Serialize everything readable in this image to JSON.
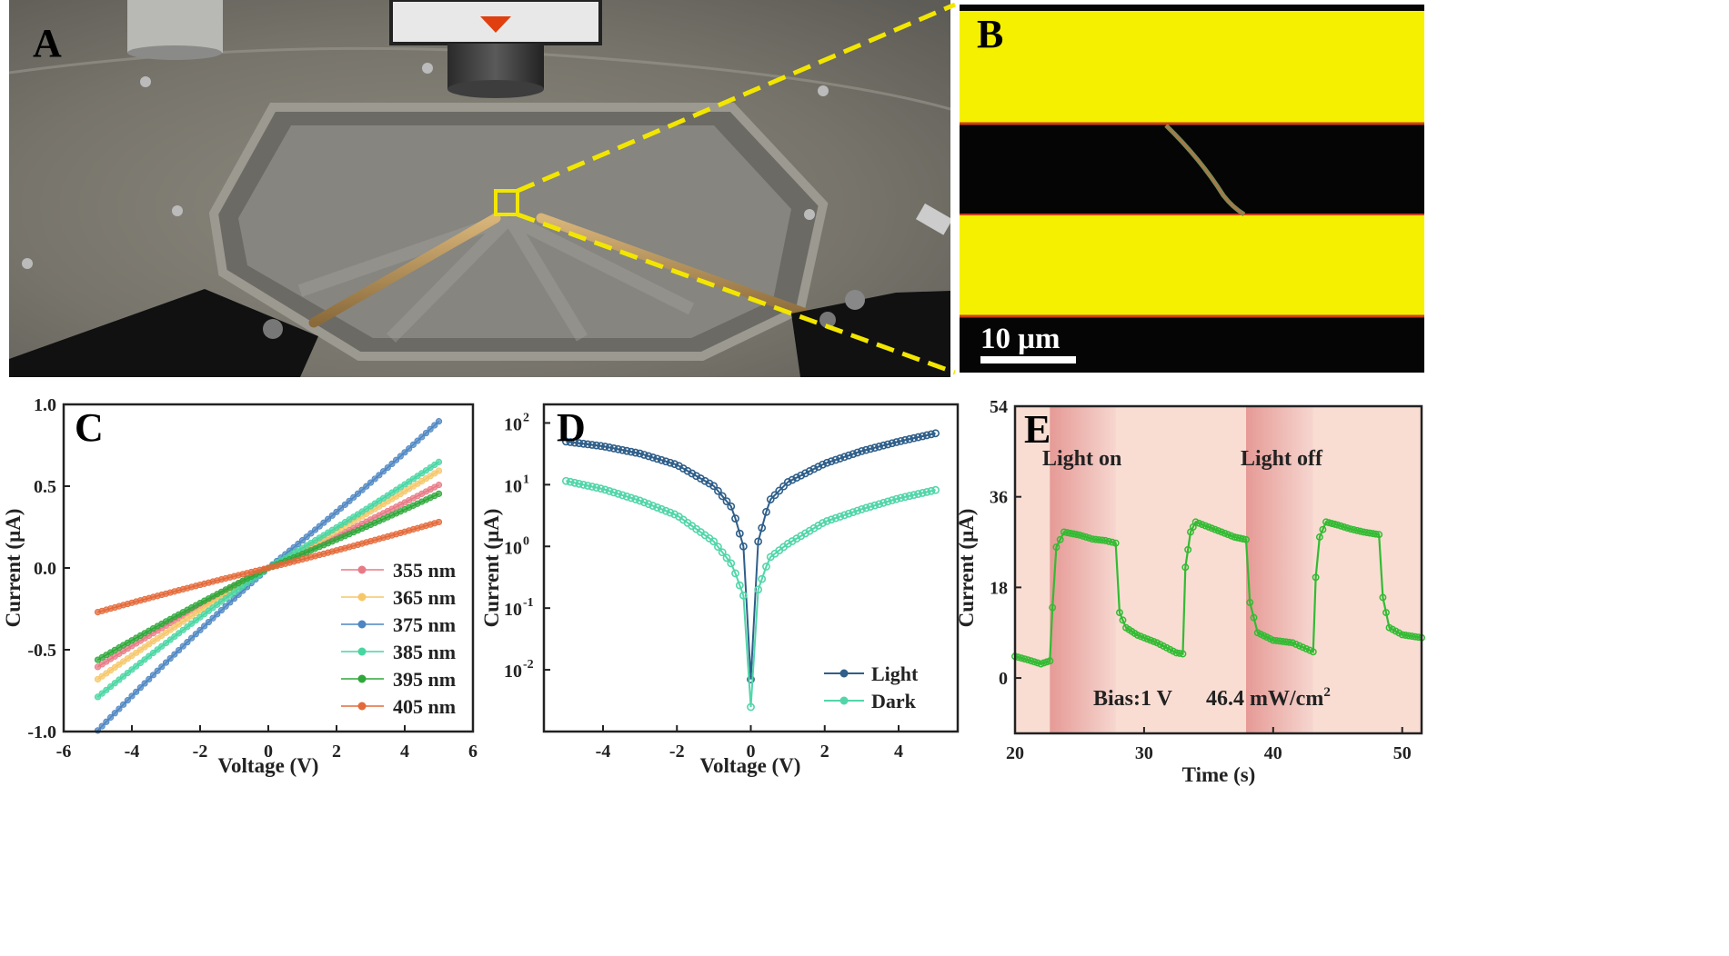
{
  "panels": {
    "a": "A",
    "b": "B",
    "c": "C",
    "d": "D",
    "e": "E"
  },
  "photo_b": {
    "scale_bar": "10 μm"
  },
  "colors": {
    "yellow": "#f5f000",
    "light_blue": "#2f5f8a",
    "dark_teal": "#52d6a9",
    "green": "#33bb33",
    "shade": "#e69a96"
  },
  "chart_data": [
    {
      "type": "line",
      "panel": "C",
      "xlabel": "Voltage (V)",
      "ylabel": "Current (μA)",
      "xlim": [
        -6,
        6
      ],
      "ylim": [
        -1.0,
        1.0
      ],
      "xticks": [
        "-6",
        "-4",
        "-2",
        "0",
        "2",
        "4",
        "6"
      ],
      "yticks": [
        "-1.0",
        "-0.5",
        "0.0",
        "0.5",
        "1.0"
      ],
      "legend_position": "bottom-right",
      "series": [
        {
          "name": "355 nm",
          "color": "#e87a86",
          "x": [
            -5,
            0,
            5
          ],
          "y": [
            -0.56,
            0.0,
            0.47
          ]
        },
        {
          "name": "365 nm",
          "color": "#f6c76a",
          "x": [
            -5,
            0,
            5
          ],
          "y": [
            -0.63,
            0.0,
            0.55
          ]
        },
        {
          "name": "375 nm",
          "color": "#4d86c2",
          "x": [
            -5,
            0,
            5
          ],
          "y": [
            -0.92,
            0.0,
            0.83
          ]
        },
        {
          "name": "385 nm",
          "color": "#47d6a2",
          "x": [
            -5,
            0,
            5
          ],
          "y": [
            -0.73,
            0.0,
            0.6
          ]
        },
        {
          "name": "395 nm",
          "color": "#2ea83a",
          "x": [
            -5,
            0,
            5
          ],
          "y": [
            -0.52,
            0.0,
            0.42
          ]
        },
        {
          "name": "405 nm",
          "color": "#e46a3a",
          "x": [
            -5,
            0,
            5
          ],
          "y": [
            -0.25,
            0.0,
            0.26
          ]
        }
      ]
    },
    {
      "type": "line",
      "panel": "D",
      "xlabel": "Voltage (V)",
      "ylabel": "Current (μA)",
      "xlim": [
        -5.6,
        5.6
      ],
      "ylim": [
        0.001,
        200
      ],
      "log_y": true,
      "xticks": [
        "-4",
        "-2",
        "0",
        "2",
        "4"
      ],
      "yticks": [
        "10",
        "10",
        "10",
        "10",
        "10"
      ],
      "ytick_exponents": [
        "-2",
        "-1",
        "0",
        "1",
        "2"
      ],
      "legend_position": "bottom-right",
      "series": [
        {
          "name": "Light",
          "color": "#2f5f8a",
          "x": [
            -5,
            -4,
            -3,
            -2,
            -1,
            -0.5,
            -0.2,
            0,
            0.2,
            0.5,
            1,
            2,
            3,
            4,
            5
          ],
          "y": [
            50,
            42,
            32,
            21,
            9.5,
            4.2,
            1.0,
            0.007,
            1.2,
            5.5,
            11,
            22,
            35,
            50,
            68
          ]
        },
        {
          "name": "Dark",
          "color": "#52d6a9",
          "x": [
            -5,
            -4,
            -3,
            -2,
            -1,
            -0.5,
            -0.2,
            0,
            0.2,
            0.5,
            1,
            2,
            3,
            4,
            5
          ],
          "y": [
            11.5,
            8.5,
            5.5,
            3.2,
            1.2,
            0.5,
            0.16,
            0.0025,
            0.2,
            0.65,
            1.1,
            2.5,
            4.0,
            6.0,
            8.2
          ]
        }
      ]
    },
    {
      "type": "line",
      "panel": "E",
      "xlabel": "Time (s)",
      "ylabel": "Current (μA)",
      "xlim": [
        20,
        51.5
      ],
      "ylim": [
        -11,
        54
      ],
      "xticks": [
        "20",
        "30",
        "40",
        "50"
      ],
      "yticks": [
        "0",
        "18",
        "36",
        "54"
      ],
      "annotations": [
        "Light on",
        "Light off",
        "Bias:1 V",
        "46.4 mW/cm"
      ],
      "annotation_superscript": "2",
      "light_on_intervals": [
        [
          22.7,
          27.8
        ],
        [
          37.9,
          43.1
        ]
      ],
      "series": [
        {
          "name": "",
          "color": "#33bb33",
          "x": [
            20,
            21,
            22,
            22.7,
            22.9,
            23.2,
            23.8,
            25,
            26,
            27,
            27.8,
            28.1,
            28.6,
            29.5,
            31,
            32.5,
            33,
            33.2,
            33.6,
            34,
            35,
            36,
            37,
            37.9,
            38.2,
            38.8,
            40,
            41.5,
            43.1,
            43.3,
            43.6,
            44.1,
            45,
            46,
            47,
            48.2,
            48.5,
            49,
            50,
            51.5
          ],
          "y": [
            4.3,
            3.6,
            2.8,
            3.4,
            14,
            26,
            29,
            28.4,
            27.6,
            27.3,
            26.8,
            13,
            10,
            8.5,
            7,
            5,
            4.8,
            22,
            29,
            31,
            30,
            29,
            28,
            27.5,
            15,
            9,
            7.5,
            7,
            5.2,
            20,
            28,
            31,
            30.4,
            29.6,
            29,
            28.5,
            16,
            10,
            8.6,
            8
          ]
        }
      ]
    }
  ]
}
